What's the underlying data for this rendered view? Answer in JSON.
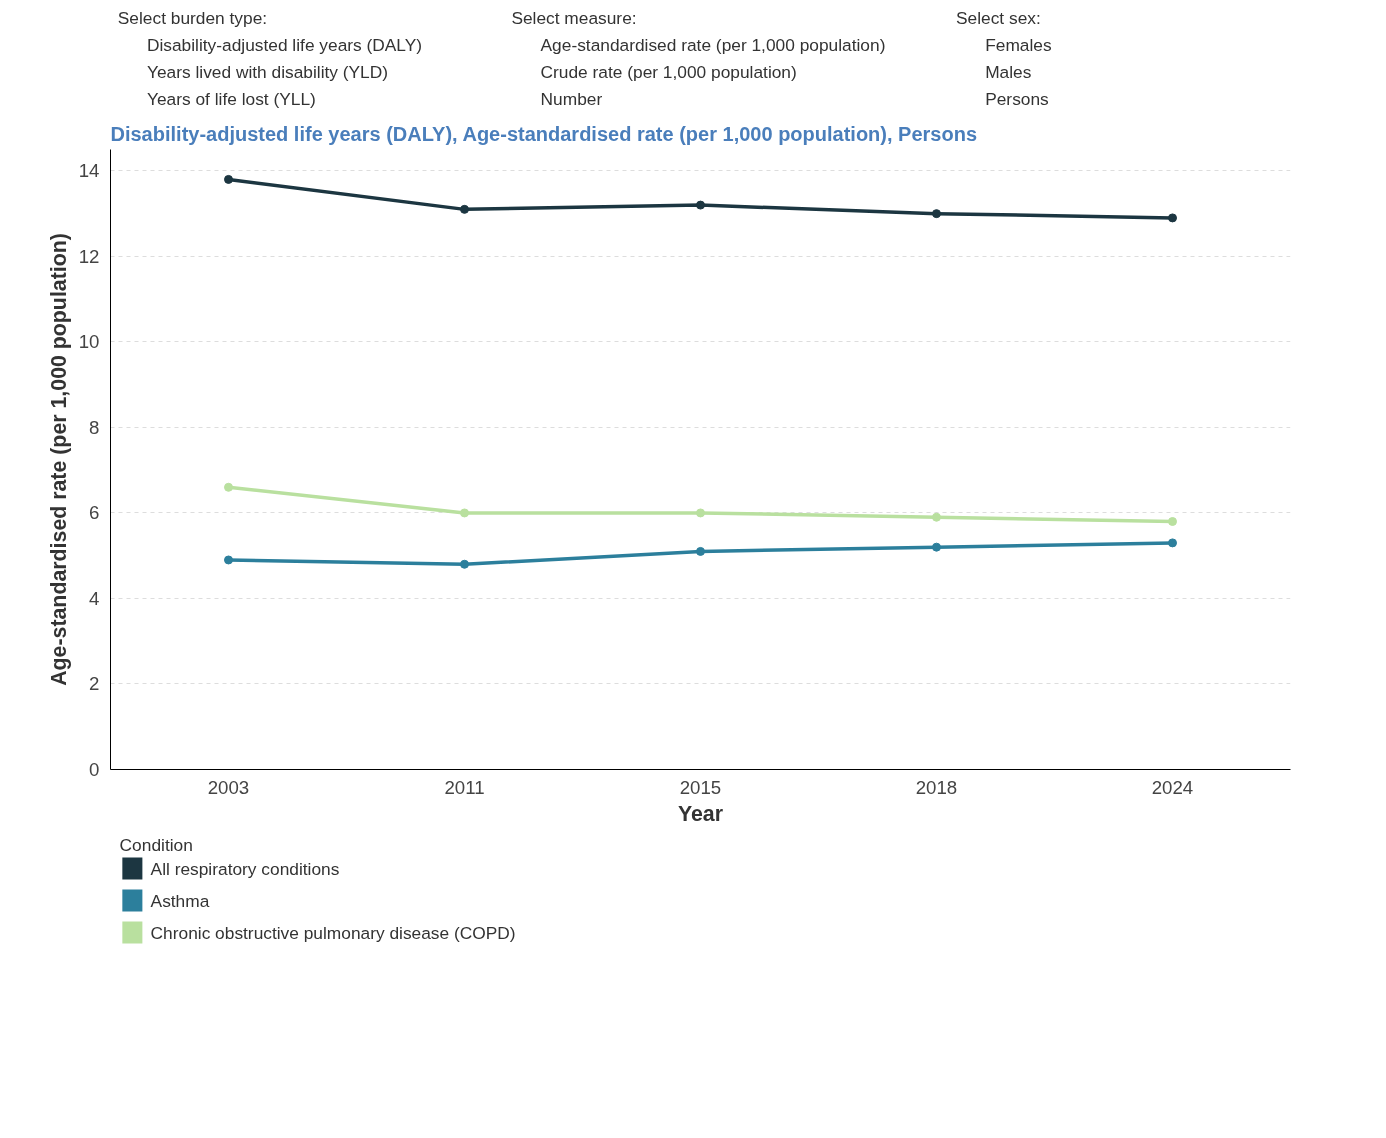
{
  "chart_data": {
    "type": "line",
    "title": "Disability-adjusted life years (DALY), Age-standardised rate (per 1,000 population), Persons",
    "xlabel": "Year",
    "ylabel": "Age-standardised rate (per 1,000 population)",
    "legend_title": "Condition",
    "categories": [
      "2003",
      "2011",
      "2015",
      "2018",
      "2024"
    ],
    "series": [
      {
        "name": "All respiratory conditions",
        "color": "#1c3641",
        "values": [
          13.8,
          13.1,
          13.2,
          13.0,
          12.9
        ]
      },
      {
        "name": "Asthma",
        "color": "#2c7f9c",
        "values": [
          4.9,
          4.8,
          5.1,
          5.2,
          5.3
        ]
      },
      {
        "name": "Chronic obstructive pulmonary disease (COPD)",
        "color": "#b9e09f",
        "values": [
          6.6,
          6.0,
          6.0,
          5.9,
          5.8
        ]
      }
    ],
    "ylim": [
      0,
      14.5
    ],
    "yticks": [
      0,
      2,
      4,
      6,
      8,
      10,
      12,
      14
    ],
    "grid": "y",
    "legend": "bottom",
    "marker": "circle",
    "line_style": "solid",
    "annotations": [
      "Select burden type:",
      "Disability-adjusted life years (DALY)",
      "Years lived with disability (YLD)",
      "Years of life lost (YLL)",
      "Select measure:",
      "Age-standardised rate (per 1,000 population)",
      "Crude rate (per 1,000 population)",
      "Number",
      "Select sex:",
      "Females",
      "Males",
      "Persons"
    ]
  }
}
